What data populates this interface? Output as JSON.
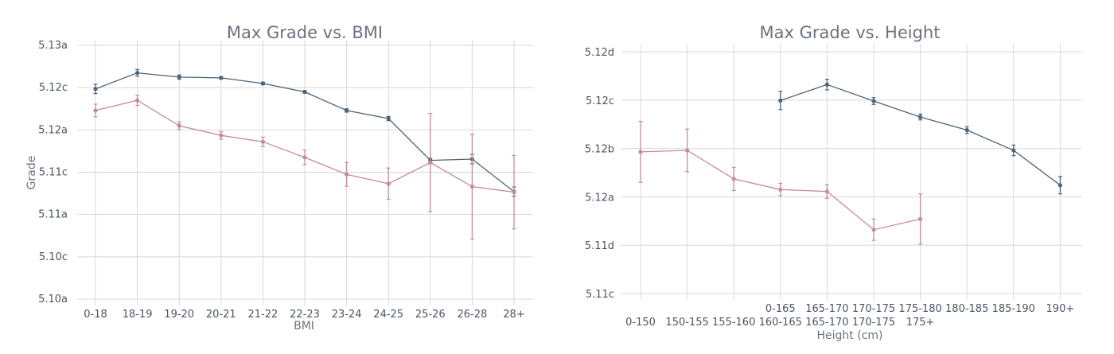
{
  "colors": {
    "blue": "#4f6478",
    "pink": "#c48c9b",
    "grid": "#d8d8d8",
    "text": "#4b5563"
  },
  "chart_data": [
    {
      "type": "line",
      "title": "Max Grade vs. BMI",
      "xlabel": "BMI",
      "ylabel": "Grade",
      "grid": true,
      "yticks": [
        "5.10a",
        "5.10c",
        "5.11a",
        "5.11c",
        "5.12a",
        "5.12c",
        "5.13a"
      ],
      "ylim": [
        0,
        6
      ],
      "categories": [
        "0-18",
        "18-19",
        "19-20",
        "20-21",
        "21-22",
        "22-23",
        "23-24",
        "24-25",
        "25-26",
        "26-28",
        "28+"
      ],
      "series": [
        {
          "color": "#4f6478",
          "values": [
            4.97,
            5.35,
            5.25,
            5.23,
            5.1,
            4.9,
            4.46,
            4.27,
            3.28,
            3.31,
            2.54
          ],
          "err": [
            0.11,
            0.08,
            0.05,
            0.03,
            0.03,
            0.03,
            0.04,
            0.05,
            0.05,
            0.11,
            0.11
          ]
        },
        {
          "color": "#c48c9b",
          "values": [
            4.46,
            4.7,
            4.1,
            3.87,
            3.72,
            3.35,
            2.95,
            2.73,
            3.23,
            2.66,
            2.53
          ],
          "err": [
            0.15,
            0.12,
            0.09,
            0.09,
            0.11,
            0.17,
            0.28,
            0.37,
            1.16,
            1.24,
            0.87
          ]
        }
      ]
    },
    {
      "type": "line",
      "title": "Max Grade vs. Height",
      "xlabel": "Height (cm)",
      "grid": true,
      "yticks": [
        "5.11c",
        "5.11d",
        "5.12a",
        "5.12b",
        "5.12c",
        "5.12d"
      ],
      "ylim": [
        0,
        5
      ],
      "positions": [
        "p0",
        "p1",
        "p2",
        "p3",
        "p4",
        "p5",
        "p6",
        "p7",
        "p8",
        "p9"
      ],
      "series": [
        {
          "color": "#4f6478",
          "labels": [
            "0-165",
            "165-170",
            "170-175",
            "175-180",
            "180-185",
            "185-190",
            "190+"
          ],
          "pos": [
            3,
            4,
            5,
            6,
            7,
            8,
            9
          ],
          "values": [
            3.99,
            4.32,
            3.98,
            3.65,
            3.38,
            2.96,
            2.24
          ],
          "err": [
            0.19,
            0.11,
            0.07,
            0.06,
            0.07,
            0.11,
            0.18
          ]
        },
        {
          "color": "#c48c9b",
          "labels": [
            "0-150",
            "150-155",
            "155-160",
            "160-165",
            "165-170",
            "170-175",
            "175+"
          ],
          "pos": [
            0,
            1,
            2,
            3,
            4,
            5,
            6
          ],
          "values": [
            2.93,
            2.96,
            2.37,
            2.15,
            2.11,
            1.32,
            1.54
          ],
          "err": [
            0.63,
            0.44,
            0.24,
            0.13,
            0.14,
            0.22,
            0.52
          ]
        }
      ]
    }
  ]
}
